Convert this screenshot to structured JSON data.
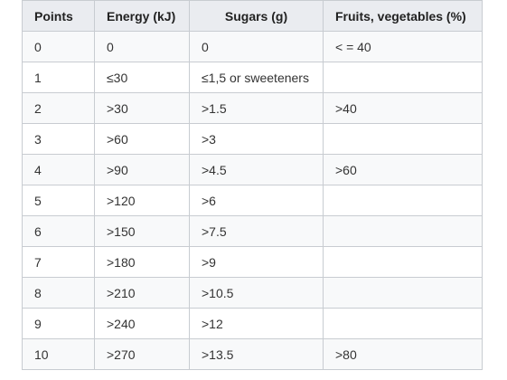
{
  "table": {
    "headers": [
      "Points",
      "Energy (kJ)",
      "Sugars (g)",
      "Fruits, vegetables (%)"
    ],
    "rows": [
      [
        "0",
        "0",
        "0",
        "< = 40"
      ],
      [
        "1",
        "≤30",
        "≤1,5 or sweeteners",
        ""
      ],
      [
        "2",
        ">30",
        ">1.5",
        ">40"
      ],
      [
        "3",
        ">60",
        ">3",
        ""
      ],
      [
        "4",
        ">90",
        ">4.5",
        ">60"
      ],
      [
        "5",
        ">120",
        ">6",
        ""
      ],
      [
        "6",
        ">150",
        ">7.5",
        ""
      ],
      [
        "7",
        ">180",
        ">9",
        ""
      ],
      [
        "8",
        ">210",
        ">10.5",
        ""
      ],
      [
        "9",
        ">240",
        ">12",
        ""
      ],
      [
        "10",
        ">270",
        ">13.5",
        ">80"
      ]
    ]
  }
}
